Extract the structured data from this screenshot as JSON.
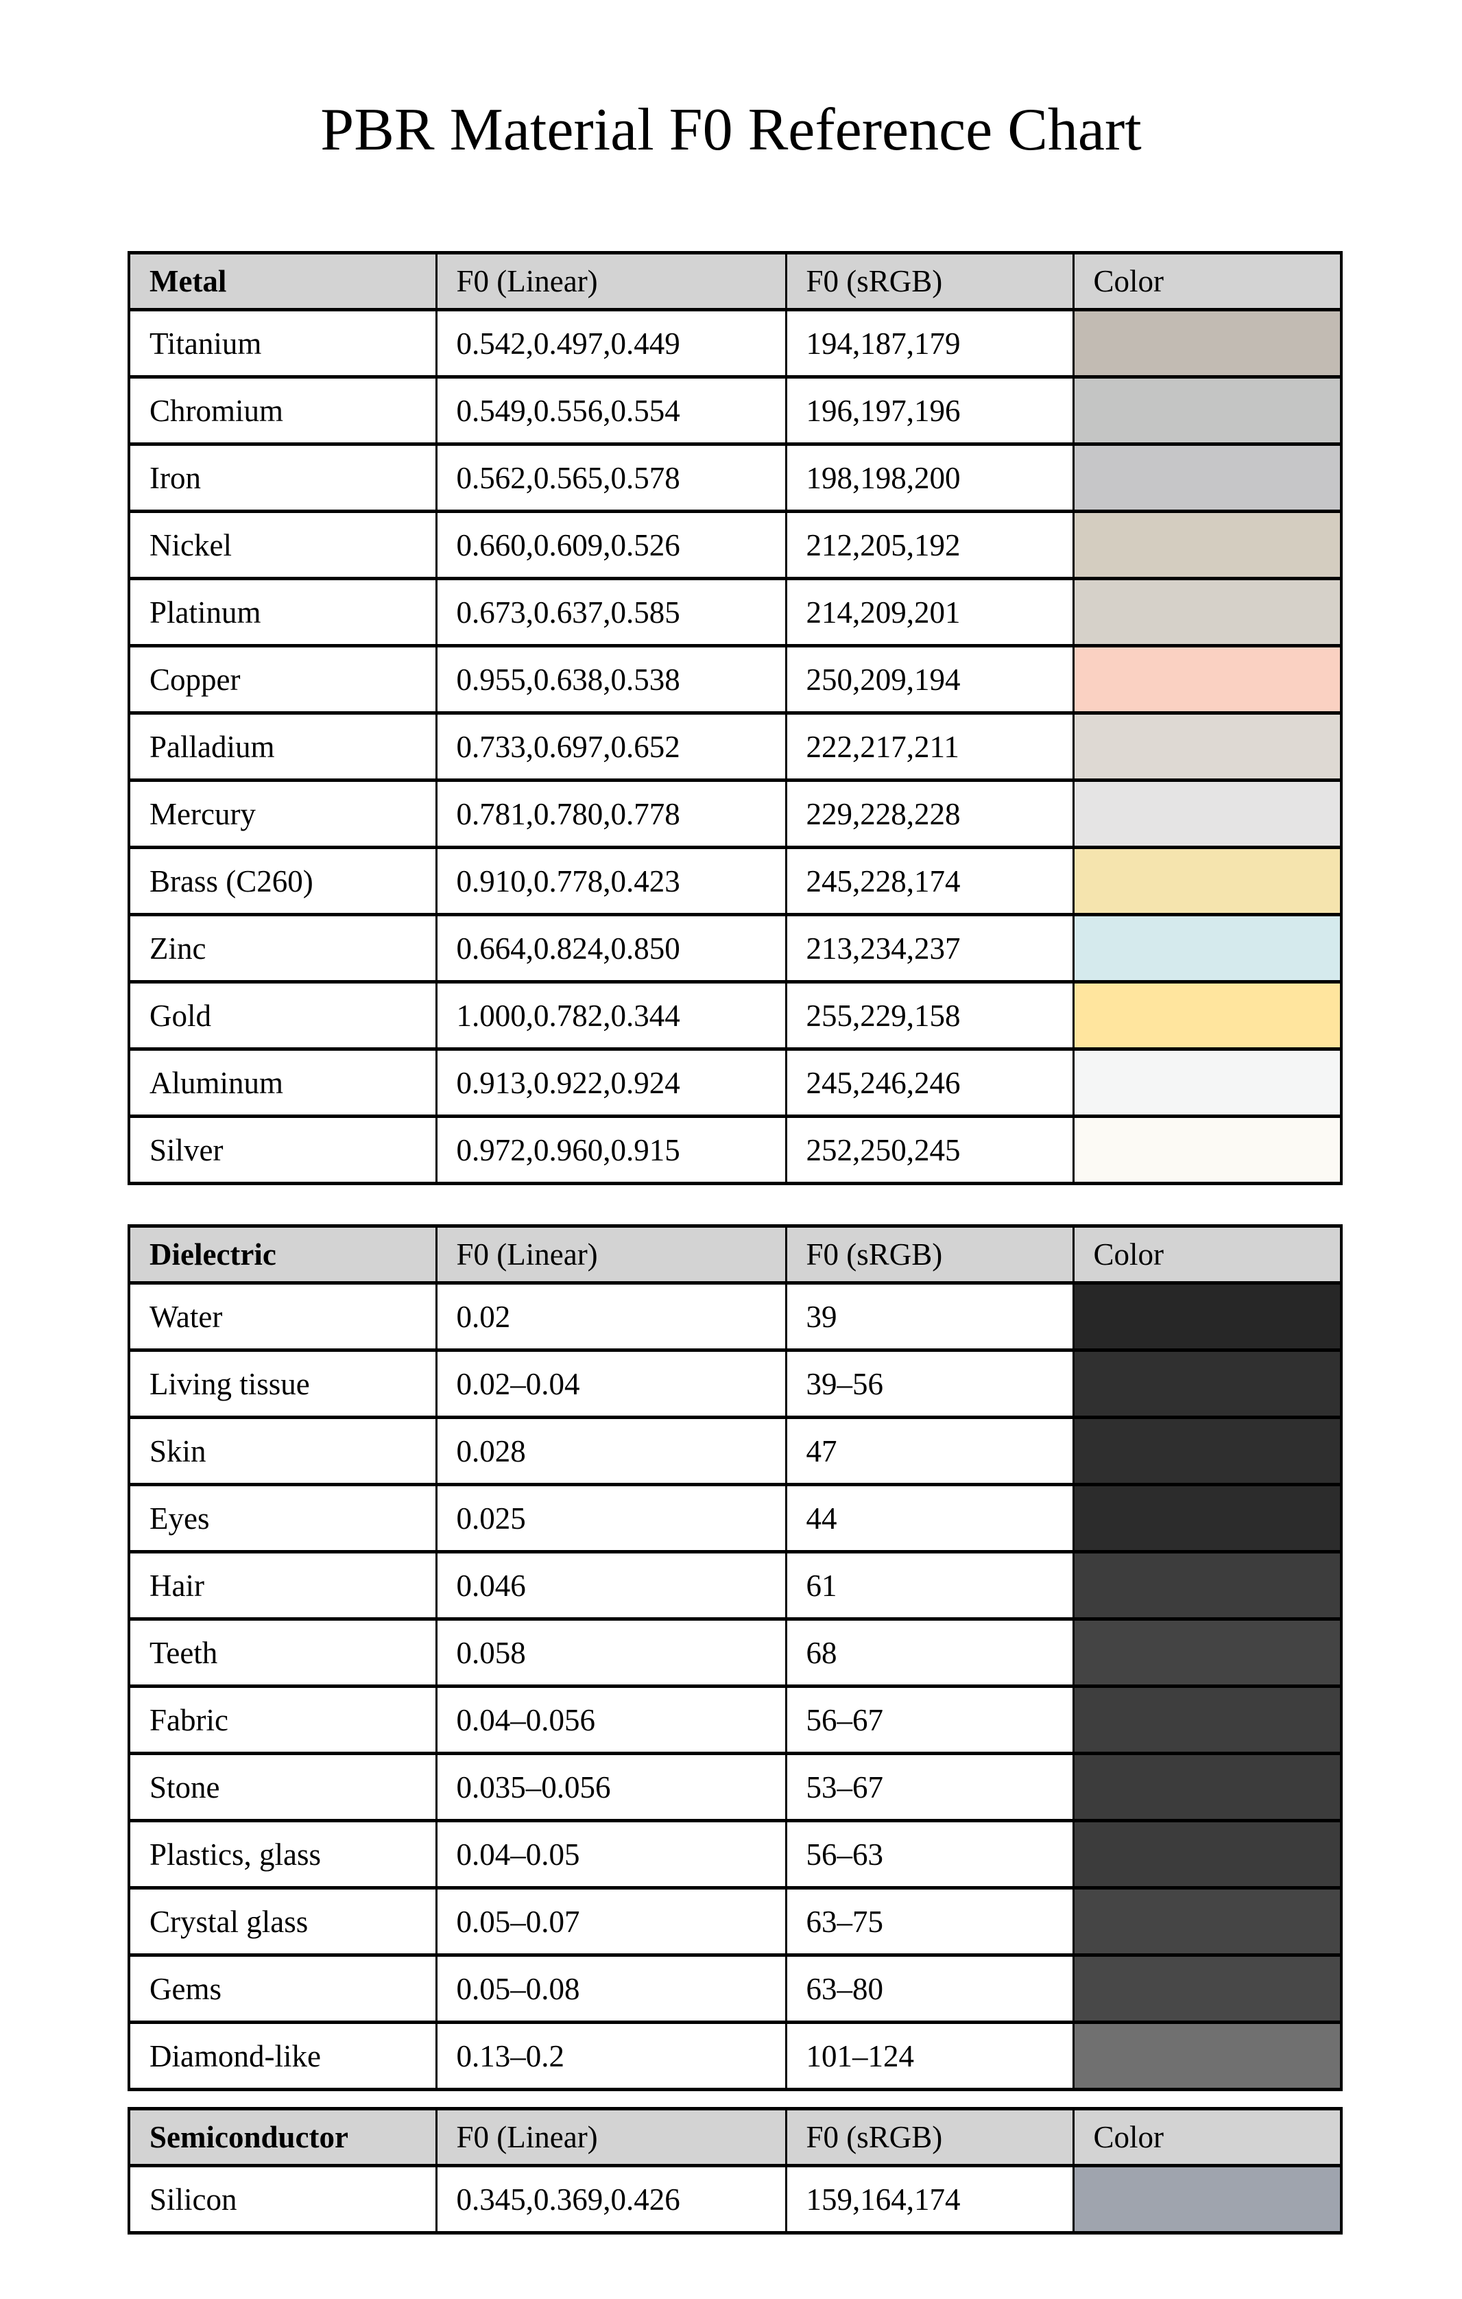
{
  "title": "PBR Material F0 Reference Chart",
  "tables": [
    {
      "id": "metal",
      "headers": [
        "Metal",
        "F0 (Linear)",
        "F0 (sRGB)",
        "Color"
      ],
      "rows": [
        {
          "material": "Titanium",
          "f0_linear": "0.542,0.497,0.449",
          "f0_srgb": "194,187,179",
          "color": "#C2BBB3"
        },
        {
          "material": "Chromium",
          "f0_linear": "0.549,0.556,0.554",
          "f0_srgb": "196,197,196",
          "color": "#C4C5C4"
        },
        {
          "material": "Iron",
          "f0_linear": "0.562,0.565,0.578",
          "f0_srgb": "198,198,200",
          "color": "#C6C6C8"
        },
        {
          "material": "Nickel",
          "f0_linear": "0.660,0.609,0.526",
          "f0_srgb": "212,205,192",
          "color": "#D4CDC0"
        },
        {
          "material": "Platinum",
          "f0_linear": "0.673,0.637,0.585",
          "f0_srgb": "214,209,201",
          "color": "#D6D1C9"
        },
        {
          "material": "Copper",
          "f0_linear": "0.955,0.638,0.538",
          "f0_srgb": "250,209,194",
          "color": "#FAD1C2"
        },
        {
          "material": "Palladium",
          "f0_linear": "0.733,0.697,0.652",
          "f0_srgb": "222,217,211",
          "color": "#DED9D3"
        },
        {
          "material": "Mercury",
          "f0_linear": "0.781,0.780,0.778",
          "f0_srgb": "229,228,228",
          "color": "#E5E4E4"
        },
        {
          "material": "Brass (C260)",
          "f0_linear": "0.910,0.778,0.423",
          "f0_srgb": "245,228,174",
          "color": "#F5E4AE"
        },
        {
          "material": "Zinc",
          "f0_linear": "0.664,0.824,0.850",
          "f0_srgb": "213,234,237",
          "color": "#D5EAED"
        },
        {
          "material": "Gold",
          "f0_linear": "1.000,0.782,0.344",
          "f0_srgb": "255,229,158",
          "color": "#FFE59E"
        },
        {
          "material": "Aluminum",
          "f0_linear": "0.913,0.922,0.924",
          "f0_srgb": "245,246,246",
          "color": "#F5F6F6"
        },
        {
          "material": "Silver",
          "f0_linear": "0.972,0.960,0.915",
          "f0_srgb": "252,250,245",
          "color": "#FCFAF5"
        }
      ]
    },
    {
      "id": "dielectric",
      "headers": [
        "Dielectric",
        "F0 (Linear)",
        "F0 (sRGB)",
        "Color"
      ],
      "rows": [
        {
          "material": "Water",
          "f0_linear": "0.02",
          "f0_srgb": "39",
          "color": "#272727"
        },
        {
          "material": "Living tissue",
          "f0_linear": "0.02–0.04",
          "f0_srgb": "39–56",
          "color": "#303030"
        },
        {
          "material": "Skin",
          "f0_linear": "0.028",
          "f0_srgb": "47",
          "color": "#2F2F2F"
        },
        {
          "material": "Eyes",
          "f0_linear": "0.025",
          "f0_srgb": "44",
          "color": "#2C2C2C"
        },
        {
          "material": "Hair",
          "f0_linear": "0.046",
          "f0_srgb": "61",
          "color": "#3D3D3D"
        },
        {
          "material": "Teeth",
          "f0_linear": "0.058",
          "f0_srgb": "68",
          "color": "#444444"
        },
        {
          "material": "Fabric",
          "f0_linear": "0.04–0.056",
          "f0_srgb": "56–67",
          "color": "#3E3E3E"
        },
        {
          "material": "Stone",
          "f0_linear": "0.035–0.056",
          "f0_srgb": "53–67",
          "color": "#3C3C3C"
        },
        {
          "material": "Plastics, glass",
          "f0_linear": "0.04–0.05",
          "f0_srgb": "56–63",
          "color": "#3C3C3C"
        },
        {
          "material": "Crystal glass",
          "f0_linear": "0.05–0.07",
          "f0_srgb": "63–75",
          "color": "#454545"
        },
        {
          "material": "Gems",
          "f0_linear": "0.05–0.08",
          "f0_srgb": "63–80",
          "color": "#484848"
        },
        {
          "material": "Diamond-like",
          "f0_linear": "0.13–0.2",
          "f0_srgb": "101–124",
          "color": "#707070"
        }
      ]
    },
    {
      "id": "semiconductor",
      "headers": [
        "Semiconductor",
        "F0 (Linear)",
        "F0 (sRGB)",
        "Color"
      ],
      "rows": [
        {
          "material": "Silicon",
          "f0_linear": "0.345,0.369,0.426",
          "f0_srgb": "159,164,174",
          "color": "#9FA4AE"
        }
      ]
    }
  ]
}
